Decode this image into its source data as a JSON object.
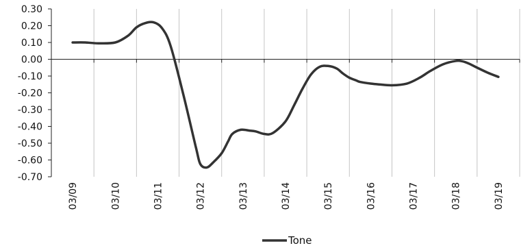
{
  "chart_data": {
    "type": "line",
    "categories": [
      "03/09",
      "03/10",
      "03/11",
      "03/12",
      "03/13",
      "03/14",
      "03/15",
      "03/16",
      "03/17",
      "03/18",
      "03/19"
    ],
    "series": [
      {
        "name": "Tone",
        "color": "#333333",
        "x": [
          0,
          0.3,
          0.6,
          1,
          1.3,
          1.5,
          1.7,
          1.9,
          2.1,
          2.3,
          2.6,
          2.9,
          3.0,
          3.15,
          3.3,
          3.5,
          3.65,
          3.75,
          3.95,
          4.15,
          4.3,
          4.5,
          4.7,
          5.0,
          5.2,
          5.4,
          5.6,
          5.8,
          6.0,
          6.2,
          6.35,
          6.5,
          6.65,
          6.75,
          7.0,
          7.2,
          7.5,
          7.85,
          8.15,
          8.4,
          8.7,
          9.0,
          9.15,
          9.3,
          9.5,
          9.75,
          10.0
        ],
        "values": [
          0.1,
          0.1,
          0.095,
          0.1,
          0.14,
          0.19,
          0.215,
          0.22,
          0.185,
          0.08,
          -0.21,
          -0.53,
          -0.625,
          -0.645,
          -0.615,
          -0.56,
          -0.49,
          -0.445,
          -0.42,
          -0.425,
          -0.43,
          -0.445,
          -0.44,
          -0.37,
          -0.275,
          -0.175,
          -0.09,
          -0.045,
          -0.04,
          -0.055,
          -0.085,
          -0.11,
          -0.125,
          -0.135,
          -0.145,
          -0.15,
          -0.155,
          -0.145,
          -0.11,
          -0.07,
          -0.03,
          -0.01,
          -0.012,
          -0.025,
          -0.05,
          -0.08,
          -0.105
        ]
      }
    ],
    "ylim": [
      -0.7,
      0.3
    ],
    "yticks": [
      "0.30",
      "0.20",
      "0.10",
      "0.00",
      "-0.10",
      "-0.20",
      "-0.30",
      "-0.40",
      "-0.50",
      "-0.60",
      "-0.70"
    ],
    "grid": "vertical",
    "legend_position": "bottom-center",
    "legend_label": "Tone"
  }
}
